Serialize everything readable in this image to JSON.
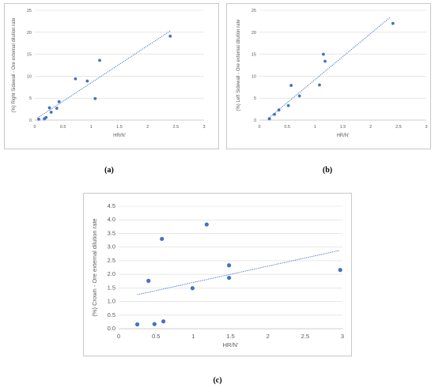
{
  "colors": {
    "point": "#4472c4",
    "trend": "#4472c4",
    "grid": "#d9d9d9",
    "text": "#595959"
  },
  "chart_data": [
    {
      "type": "scatter",
      "caption": "(a)",
      "xlabel": "HR/N'",
      "ylabel": "(%) Right Sidewall - Ore external dilution rate",
      "xlim": [
        0,
        3
      ],
      "ylim": [
        0,
        25
      ],
      "xticks": [
        "0",
        "0.5",
        "1",
        "1.5",
        "2",
        "2.5",
        "3"
      ],
      "yticks": [
        "0",
        "5",
        "10",
        "15",
        "20",
        "25"
      ],
      "grid": "horizontal",
      "trendline": {
        "type": "linear",
        "x": [
          0.05,
          2.4
        ],
        "y": [
          0.5,
          20.3
        ]
      },
      "points": [
        {
          "x": 0.07,
          "y": 0.2
        },
        {
          "x": 0.17,
          "y": 0.3
        },
        {
          "x": 0.2,
          "y": 0.6
        },
        {
          "x": 0.26,
          "y": 2.8
        },
        {
          "x": 0.29,
          "y": 1.8
        },
        {
          "x": 0.39,
          "y": 2.7
        },
        {
          "x": 0.43,
          "y": 4.2
        },
        {
          "x": 0.72,
          "y": 9.4
        },
        {
          "x": 0.93,
          "y": 8.9
        },
        {
          "x": 1.07,
          "y": 4.9
        },
        {
          "x": 1.15,
          "y": 13.6
        },
        {
          "x": 2.4,
          "y": 19.1
        }
      ]
    },
    {
      "type": "scatter",
      "caption": "(b)",
      "xlabel": "HR/N'",
      "ylabel": "(%) Left Sidewall - Ore external dilution rate",
      "xlim": [
        0,
        3
      ],
      "ylim": [
        0,
        25
      ],
      "xticks": [
        "0",
        "0.5",
        "1",
        "1.5",
        "2",
        "2.5",
        "3"
      ],
      "yticks": [
        "0",
        "5",
        "10",
        "15",
        "20",
        "25"
      ],
      "grid": "horizontal",
      "trendline": {
        "type": "linear",
        "x": [
          0.15,
          2.35
        ],
        "y": [
          0.3,
          23.4
        ]
      },
      "points": [
        {
          "x": 0.18,
          "y": 0.3
        },
        {
          "x": 0.27,
          "y": 1.3
        },
        {
          "x": 0.35,
          "y": 2.3
        },
        {
          "x": 0.52,
          "y": 3.3
        },
        {
          "x": 0.57,
          "y": 7.9
        },
        {
          "x": 0.72,
          "y": 5.5
        },
        {
          "x": 1.08,
          "y": 8.0
        },
        {
          "x": 1.15,
          "y": 15.0
        },
        {
          "x": 1.18,
          "y": 13.4
        },
        {
          "x": 2.4,
          "y": 22.0
        }
      ]
    },
    {
      "type": "scatter",
      "caption": "(c)",
      "xlabel": "HR/N'",
      "ylabel": "(%) Crown - Ore external dilution rate",
      "xlim": [
        0,
        3
      ],
      "ylim": [
        0,
        4.5
      ],
      "xticks": [
        "0",
        "0.5",
        "1",
        "1.5",
        "2",
        "2.5",
        "3"
      ],
      "yticks": [
        "0.0",
        "0.5",
        "1.0",
        "1.5",
        "2.0",
        "2.5",
        "3.0",
        "3.5",
        "4.0",
        "4.5"
      ],
      "grid": "horizontal",
      "trendline": {
        "type": "linear",
        "x": [
          0.25,
          2.95
        ],
        "y": [
          1.25,
          2.87
        ]
      },
      "points": [
        {
          "x": 0.25,
          "y": 0.16
        },
        {
          "x": 0.4,
          "y": 1.76
        },
        {
          "x": 0.48,
          "y": 0.17
        },
        {
          "x": 0.58,
          "y": 3.3
        },
        {
          "x": 0.6,
          "y": 0.27
        },
        {
          "x": 0.99,
          "y": 1.49
        },
        {
          "x": 1.18,
          "y": 3.83
        },
        {
          "x": 1.48,
          "y": 2.33
        },
        {
          "x": 1.48,
          "y": 1.87
        },
        {
          "x": 2.97,
          "y": 2.16
        }
      ]
    }
  ]
}
